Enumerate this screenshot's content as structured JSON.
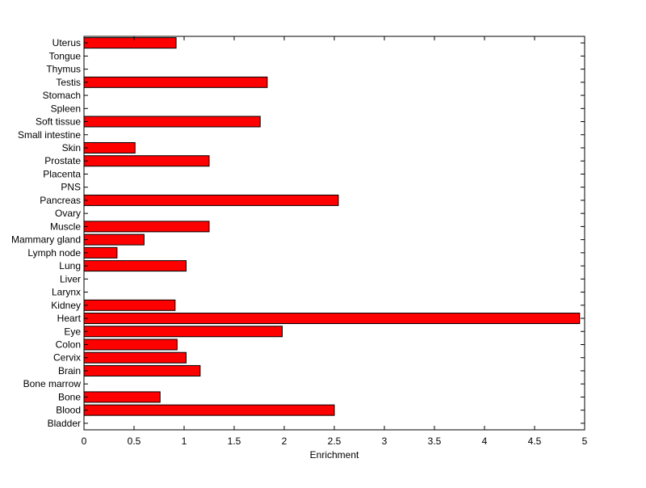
{
  "chart_data": {
    "type": "bar",
    "orientation": "horizontal",
    "categories": [
      "Bladder",
      "Blood",
      "Bone",
      "Bone marrow",
      "Brain",
      "Cervix",
      "Colon",
      "Eye",
      "Heart",
      "Kidney",
      "Larynx",
      "Liver",
      "Lung",
      "Lymph node",
      "Mammary gland",
      "Muscle",
      "Ovary",
      "Pancreas",
      "PNS",
      "Placenta",
      "Prostate",
      "Skin",
      "Small intestine",
      "Soft tissue",
      "Spleen",
      "Stomach",
      "Testis",
      "Thymus",
      "Tongue",
      "Uterus"
    ],
    "values": [
      0,
      2.5,
      0.76,
      0,
      1.16,
      1.02,
      0.93,
      1.98,
      4.95,
      0.91,
      0,
      0,
      1.02,
      0.33,
      0.6,
      1.25,
      0,
      2.54,
      0,
      0,
      1.25,
      0.51,
      0,
      1.76,
      0,
      0,
      1.83,
      0,
      0,
      0.92
    ],
    "xlabel": "Enrichment",
    "ylabel": "",
    "title": "",
    "xlim": [
      0,
      5
    ],
    "xticks": [
      "0",
      "0.5",
      "1",
      "1.5",
      "2",
      "2.5",
      "3",
      "3.5",
      "4",
      "4.5",
      "5"
    ],
    "bar_color": "#ff0000",
    "bar_edge_color": "#000000",
    "grid": false,
    "legend": "none"
  }
}
